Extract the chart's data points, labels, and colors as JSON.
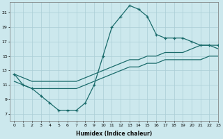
{
  "xlabel": "Humidex (Indice chaleur)",
  "bg_color": "#cce8ed",
  "grid_color": "#aacdd5",
  "line_color": "#1a6b6b",
  "xlim": [
    -0.5,
    23
  ],
  "ylim": [
    6,
    22.5
  ],
  "xticks": [
    0,
    1,
    2,
    3,
    4,
    5,
    6,
    7,
    8,
    9,
    10,
    11,
    12,
    13,
    14,
    15,
    16,
    17,
    18,
    19,
    20,
    21,
    22,
    23
  ],
  "yticks": [
    7,
    9,
    11,
    13,
    15,
    17,
    19,
    21
  ],
  "curve1_x": [
    0,
    1,
    2,
    3,
    4,
    5,
    6,
    7,
    8,
    9,
    10,
    11,
    12,
    13,
    14,
    15,
    16,
    17,
    18,
    19,
    20,
    21,
    22,
    23
  ],
  "curve1_y": [
    12.5,
    11.0,
    10.5,
    9.5,
    8.5,
    7.5,
    7.5,
    7.5,
    8.5,
    11.0,
    15.0,
    19.0,
    20.5,
    22.0,
    21.5,
    20.5,
    18.0,
    17.5,
    17.5,
    17.5,
    17.0,
    16.5,
    16.5,
    16.5
  ],
  "curve2_x": [
    0,
    1,
    2,
    3,
    4,
    5,
    6,
    7,
    8,
    9,
    10,
    11,
    12,
    13,
    14,
    15,
    16,
    17,
    18,
    19,
    20,
    21,
    22,
    23
  ],
  "curve2_y": [
    12.5,
    12.0,
    11.5,
    11.5,
    11.5,
    11.5,
    11.5,
    11.5,
    12.0,
    12.5,
    13.0,
    13.5,
    14.0,
    14.5,
    14.5,
    15.0,
    15.0,
    15.5,
    15.5,
    15.5,
    16.0,
    16.5,
    16.5,
    16.0
  ],
  "curve3_x": [
    0,
    1,
    2,
    3,
    4,
    5,
    6,
    7,
    8,
    9,
    10,
    11,
    12,
    13,
    14,
    15,
    16,
    17,
    18,
    19,
    20,
    21,
    22,
    23
  ],
  "curve3_y": [
    11.5,
    11.0,
    10.5,
    10.5,
    10.5,
    10.5,
    10.5,
    10.5,
    11.0,
    11.5,
    12.0,
    12.5,
    13.0,
    13.5,
    13.5,
    14.0,
    14.0,
    14.5,
    14.5,
    14.5,
    14.5,
    14.5,
    15.0,
    15.0
  ]
}
